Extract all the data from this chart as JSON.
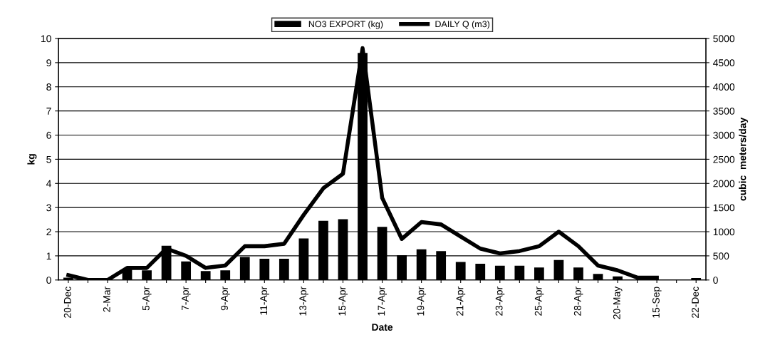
{
  "chart_data": {
    "type": "bar",
    "xlabel": "Date",
    "ylabel": "kg",
    "y2label": "cubic  meters/day",
    "categories": [
      "20-Dec",
      null,
      "2-Mar",
      null,
      "5-Apr",
      null,
      "7-Apr",
      null,
      "9-Apr",
      null,
      "11-Apr",
      null,
      "13-Apr",
      null,
      "15-Apr",
      null,
      "17-Apr",
      null,
      "19-Apr",
      null,
      "21-Apr",
      null,
      "23-Apr",
      null,
      "25-Apr",
      null,
      "28-Apr",
      null,
      "20-May",
      null,
      "15-Sep",
      null,
      "22-Dec"
    ],
    "series": [
      {
        "name": "NO3 EXPORT (kg)",
        "color": "#000000",
        "values": [
          0.1,
          null,
          null,
          0.45,
          0.4,
          1.42,
          0.77,
          0.37,
          0.4,
          0.95,
          0.88,
          0.88,
          1.72,
          2.45,
          2.52,
          9.4,
          2.2,
          1.03,
          1.27,
          1.2,
          0.75,
          0.67,
          0.59,
          0.59,
          0.52,
          0.83,
          0.52,
          0.25,
          0.15,
          0,
          0,
          0,
          0.08
        ]
      },
      {
        "name": "DAILY Q (m3)",
        "type": "line",
        "axis": "y2",
        "color": "#000000",
        "values": [
          100,
          0,
          0,
          250,
          250,
          650,
          500,
          250,
          300,
          700,
          700,
          750,
          1350,
          1900,
          2200,
          4800,
          1700,
          850,
          1200,
          1150,
          900,
          650,
          550,
          600,
          700,
          1000,
          700,
          300,
          200,
          50,
          50,
          null,
          null
        ]
      }
    ],
    "ylim": [
      0,
      10
    ],
    "yticks": [
      0,
      1,
      2,
      3,
      4,
      5,
      6,
      7,
      8,
      9,
      10
    ],
    "y2lim": [
      0,
      5000
    ],
    "y2ticks": [
      0,
      500,
      1000,
      1500,
      2000,
      2500,
      3000,
      3500,
      4000,
      4500,
      5000
    ],
    "grid": "y",
    "legend": "top",
    "marker": "none",
    "line_style": "solid"
  }
}
